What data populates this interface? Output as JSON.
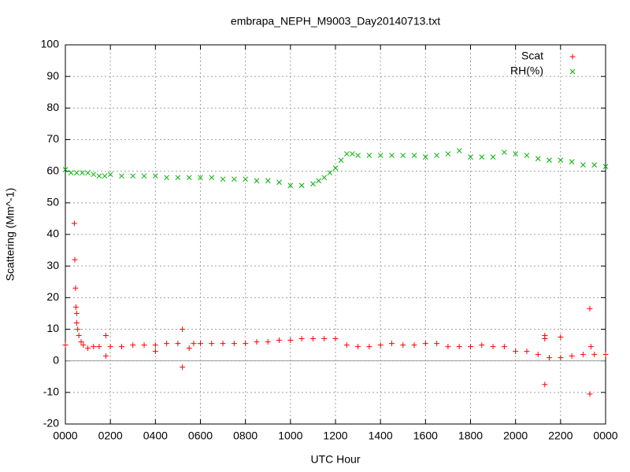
{
  "chart_data": {
    "type": "scatter",
    "title": "embrapa_NEPH_M9003_Day20140713.txt",
    "x_label": "UTC Hour",
    "y_label": "Scattering (Mm^-1)",
    "xlim": [
      0,
      24
    ],
    "ylim": [
      -20,
      100
    ],
    "xticks": [
      {
        "value": 0,
        "label": "0000"
      },
      {
        "value": 2,
        "label": "0200"
      },
      {
        "value": 4,
        "label": "0400"
      },
      {
        "value": 6,
        "label": "0600"
      },
      {
        "value": 8,
        "label": "0800"
      },
      {
        "value": 10,
        "label": "1000"
      },
      {
        "value": 12,
        "label": "1200"
      },
      {
        "value": 14,
        "label": "1400"
      },
      {
        "value": 16,
        "label": "1600"
      },
      {
        "value": 18,
        "label": "1800"
      },
      {
        "value": 20,
        "label": "2000"
      },
      {
        "value": 22,
        "label": "2200"
      },
      {
        "value": 24,
        "label": "0000"
      }
    ],
    "yticks": [
      -20,
      -10,
      0,
      10,
      20,
      30,
      40,
      50,
      60,
      70,
      80,
      90,
      100
    ],
    "grid": true,
    "legend": "top-right",
    "series": [
      {
        "name": "Scat",
        "color": "#ff0000",
        "marker": "plus",
        "x": [
          0,
          0.4,
          0.42,
          0.45,
          0.47,
          0.5,
          0.5,
          0.55,
          0.6,
          0.7,
          0.8,
          1.0,
          1.25,
          1.5,
          1.8,
          1.8,
          2.0,
          2.5,
          3.0,
          3.5,
          4.0,
          4.0,
          4.5,
          5.0,
          5.2,
          5.2,
          5.5,
          5.7,
          6.0,
          6.5,
          7.0,
          7.5,
          8.0,
          8.5,
          9.0,
          9.5,
          10.0,
          10.5,
          11.0,
          11.5,
          12.0,
          12.5,
          13.0,
          13.5,
          14.0,
          14.5,
          15.0,
          15.5,
          16.0,
          16.5,
          17.0,
          17.5,
          18.0,
          18.5,
          19.0,
          19.5,
          20.0,
          20.5,
          21.0,
          21.3,
          21.3,
          21.3,
          21.5,
          22.0,
          22.0,
          22.5,
          23.0,
          23.3,
          23.3,
          23.35,
          23.5,
          24.0
        ],
        "values": [
          5,
          43.5,
          32,
          23,
          17,
          15,
          12,
          10,
          8,
          6,
          5,
          4,
          4.5,
          4.5,
          8,
          1.5,
          4.5,
          4.5,
          5,
          5,
          5,
          3,
          5.5,
          5.5,
          -2,
          10,
          4,
          5.5,
          5.5,
          5.5,
          5.5,
          5.5,
          5.5,
          6,
          6,
          6.5,
          6.5,
          7,
          7,
          7,
          7,
          5,
          4.5,
          4.5,
          5,
          5.5,
          5,
          5,
          5.5,
          5.5,
          4.5,
          4.5,
          4.5,
          5,
          4.5,
          4.5,
          3,
          3,
          2,
          8,
          7,
          -7.5,
          1,
          1,
          7.5,
          1.5,
          2,
          16.5,
          -10.5,
          4.5,
          2,
          2
        ]
      },
      {
        "name": "RH(%)",
        "color": "#00b000",
        "marker": "cross",
        "x": [
          0,
          0.25,
          0.5,
          0.75,
          1.0,
          1.25,
          1.5,
          1.75,
          2.0,
          2.5,
          3.0,
          3.5,
          4.0,
          4.5,
          5.0,
          5.5,
          6.0,
          6.5,
          7.0,
          7.5,
          8.0,
          8.5,
          9.0,
          9.5,
          10.0,
          10.5,
          11.0,
          11.25,
          11.5,
          11.75,
          12.0,
          12.25,
          12.5,
          12.75,
          13.0,
          13.5,
          14.0,
          14.5,
          15.0,
          15.5,
          16.0,
          16.5,
          17.0,
          17.5,
          18.0,
          18.5,
          19.0,
          19.5,
          20.0,
          20.5,
          21.0,
          21.5,
          22.0,
          22.5,
          23.0,
          23.5,
          24.0
        ],
        "values": [
          60.5,
          59.5,
          59.5,
          59.5,
          59.5,
          59,
          58.5,
          58.5,
          59,
          58.5,
          58.5,
          58.5,
          58.5,
          58,
          58,
          58,
          58,
          58,
          57.5,
          57.5,
          57.5,
          57,
          57,
          56.5,
          55.5,
          55.5,
          56,
          57,
          58,
          59.5,
          61,
          63.5,
          65.5,
          65.5,
          65,
          65,
          65,
          65,
          65,
          65,
          64.5,
          65,
          65.5,
          66.5,
          64.5,
          64.5,
          64.5,
          66,
          65.5,
          65,
          64,
          63.5,
          63.5,
          63,
          62,
          62,
          61.5
        ]
      }
    ]
  }
}
